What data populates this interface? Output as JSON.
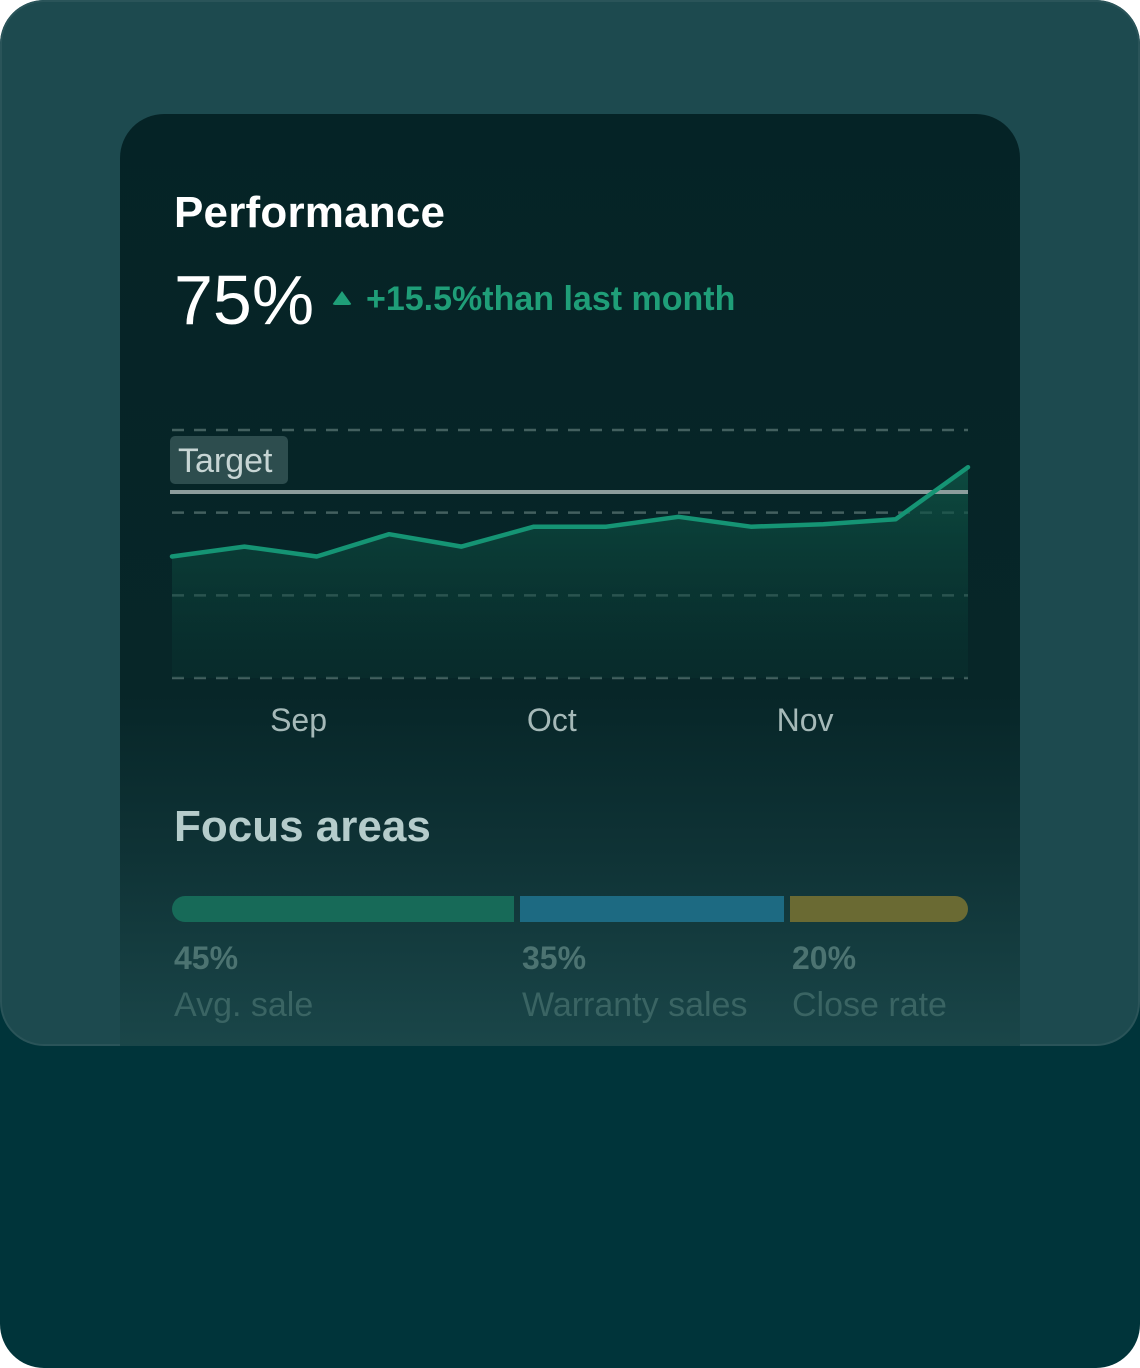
{
  "card": {
    "title": "Performance",
    "metric": "75%",
    "delta": "+15.5%than last month"
  },
  "colors": {
    "accent": "#1f9e78",
    "background": "#00343a",
    "card": "#052326"
  },
  "chart_data": {
    "type": "area",
    "x": [
      0,
      1,
      2,
      3,
      4,
      5,
      6,
      7,
      8,
      9,
      10,
      11
    ],
    "values": [
      49,
      53,
      49,
      58,
      53,
      61,
      61,
      65,
      61,
      62,
      64,
      85
    ],
    "target_label": "Target",
    "target_value": 75,
    "x_tick_labels": [
      {
        "label": "Sep",
        "x": 1.5
      },
      {
        "label": "Oct",
        "x": 5.0
      },
      {
        "label": "Nov",
        "x": 8.5
      }
    ],
    "ylim": [
      0,
      100
    ],
    "grid": true,
    "grid_style": "dashed"
  },
  "focus": {
    "title": "Focus areas",
    "items": [
      {
        "percent": "45%",
        "label": "Avg. sale",
        "color": "#176a58"
      },
      {
        "percent": "35%",
        "label": "Warranty sales",
        "color": "#1d6a82"
      },
      {
        "percent": "20%",
        "label": "Close rate",
        "color": "#6a6a33"
      }
    ]
  }
}
